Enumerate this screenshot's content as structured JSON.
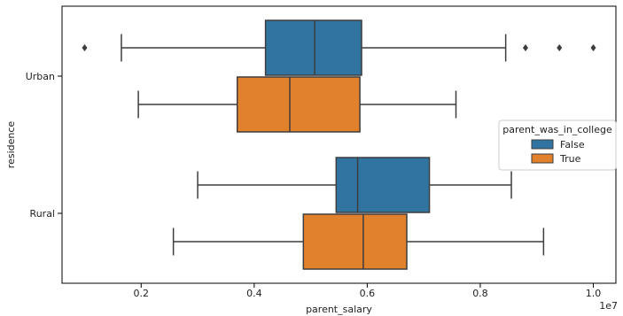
{
  "chart_data": {
    "type": "box",
    "title": "",
    "xlabel": "parent_salary",
    "ylabel": "residence",
    "x_exponent_label": "1e7",
    "xlim": [
      0.06,
      1.04
    ],
    "x_ticks": [
      0.2,
      0.4,
      0.6,
      0.8,
      1.0
    ],
    "x_tick_labels": [
      "0.2",
      "0.4",
      "0.6",
      "0.8",
      "1.0"
    ],
    "categories": [
      "Urban",
      "Rural"
    ],
    "legend": {
      "title": "parent_was_in_college",
      "placement": "center-right",
      "entries": [
        {
          "label": "False",
          "color": "#3274a1"
        },
        {
          "label": "True",
          "color": "#e1812c"
        }
      ]
    },
    "series": [
      {
        "name": "False",
        "color": "#3274a1",
        "boxes": [
          {
            "category": "Urban",
            "whisker_low": 0.165,
            "q1": 0.42,
            "median": 0.507,
            "q3": 0.59,
            "whisker_high": 0.845,
            "outliers": [
              0.1,
              0.88,
              0.94,
              1.0
            ]
          },
          {
            "category": "Rural",
            "whisker_low": 0.3,
            "q1": 0.545,
            "median": 0.583,
            "q3": 0.71,
            "whisker_high": 0.855,
            "outliers": []
          }
        ]
      },
      {
        "name": "True",
        "color": "#e1812c",
        "boxes": [
          {
            "category": "Urban",
            "whisker_low": 0.195,
            "q1": 0.37,
            "median": 0.463,
            "q3": 0.587,
            "whisker_high": 0.757,
            "outliers": []
          },
          {
            "category": "Rural",
            "whisker_low": 0.257,
            "q1": 0.487,
            "median": 0.593,
            "q3": 0.67,
            "whisker_high": 0.912,
            "outliers": []
          }
        ]
      }
    ]
  }
}
